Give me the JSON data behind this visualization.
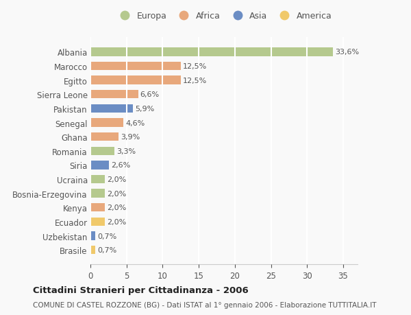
{
  "countries": [
    "Albania",
    "Marocco",
    "Egitto",
    "Sierra Leone",
    "Pakistan",
    "Senegal",
    "Ghana",
    "Romania",
    "Siria",
    "Ucraina",
    "Bosnia-Erzegovina",
    "Kenya",
    "Ecuador",
    "Uzbekistan",
    "Brasile"
  ],
  "values": [
    33.6,
    12.5,
    12.5,
    6.6,
    5.9,
    4.6,
    3.9,
    3.3,
    2.6,
    2.0,
    2.0,
    2.0,
    2.0,
    0.7,
    0.7
  ],
  "labels": [
    "33,6%",
    "12,5%",
    "12,5%",
    "6,6%",
    "5,9%",
    "4,6%",
    "3,9%",
    "3,3%",
    "2,6%",
    "2,0%",
    "2,0%",
    "2,0%",
    "2,0%",
    "0,7%",
    "0,7%"
  ],
  "continents": [
    "Europa",
    "Africa",
    "Africa",
    "Africa",
    "Asia",
    "Africa",
    "Africa",
    "Europa",
    "Asia",
    "Europa",
    "Europa",
    "Africa",
    "America",
    "Asia",
    "America"
  ],
  "colors": {
    "Europa": "#b5c98e",
    "Africa": "#e8a87c",
    "Asia": "#6b8dc4",
    "America": "#f0c96b"
  },
  "legend_order": [
    "Europa",
    "Africa",
    "Asia",
    "America"
  ],
  "title": "Cittadini Stranieri per Cittadinanza - 2006",
  "subtitle": "COMUNE DI CASTEL ROZZONE (BG) - Dati ISTAT al 1° gennaio 2006 - Elaborazione TUTTITALIA.IT",
  "xlim": [
    0,
    37
  ],
  "xticks": [
    0,
    5,
    10,
    15,
    20,
    25,
    30,
    35
  ],
  "bg_color": "#f9f9f9",
  "grid_color": "#ffffff",
  "bar_height": 0.6
}
